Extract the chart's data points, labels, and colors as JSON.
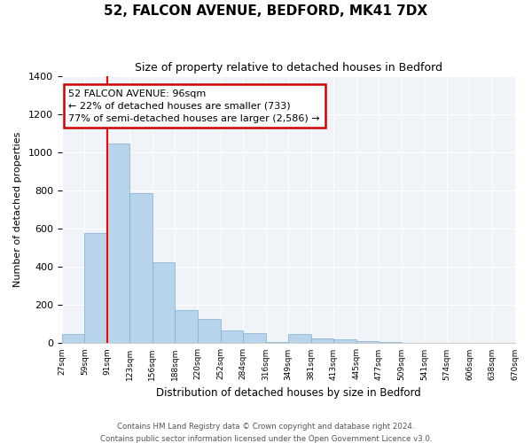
{
  "title": "52, FALCON AVENUE, BEDFORD, MK41 7DX",
  "subtitle": "Size of property relative to detached houses in Bedford",
  "xlabel": "Distribution of detached houses by size in Bedford",
  "ylabel": "Number of detached properties",
  "bin_labels": [
    "27sqm",
    "59sqm",
    "91sqm",
    "123sqm",
    "156sqm",
    "188sqm",
    "220sqm",
    "252sqm",
    "284sqm",
    "316sqm",
    "349sqm",
    "381sqm",
    "413sqm",
    "445sqm",
    "477sqm",
    "509sqm",
    "541sqm",
    "574sqm",
    "606sqm",
    "638sqm",
    "670sqm"
  ],
  "bar_values": [
    50,
    575,
    1045,
    785,
    425,
    175,
    125,
    65,
    55,
    5,
    50,
    25,
    20,
    10,
    5,
    0,
    0,
    0,
    0,
    0
  ],
  "bar_color": "#b8d4ea",
  "bar_edge_color": "#7bafd4",
  "red_line_index": 2,
  "annotation_title": "52 FALCON AVENUE: 96sqm",
  "annotation_line1": "← 22% of detached houses are smaller (733)",
  "annotation_line2": "77% of semi-detached houses are larger (2,586) →",
  "annotation_box_facecolor": "#ffffff",
  "annotation_box_edgecolor": "#cc0000",
  "ylim": [
    0,
    1400
  ],
  "yticks": [
    0,
    200,
    400,
    600,
    800,
    1000,
    1200,
    1400
  ],
  "footer_line1": "Contains HM Land Registry data © Crown copyright and database right 2024.",
  "footer_line2": "Contains public sector information licensed under the Open Government Licence v3.0."
}
